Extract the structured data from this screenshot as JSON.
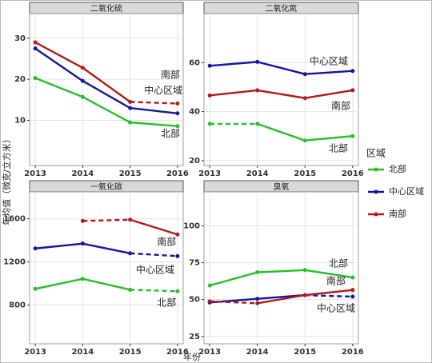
{
  "ylabel": "年均值（微克/立方米）",
  "xlabel": "年份",
  "legend_title": "区域",
  "chart_data": [
    {
      "type": "line",
      "title": "二氧化硫",
      "x": [
        2013,
        2014,
        2015,
        2016
      ],
      "xlim": [
        2012.88,
        2016.12
      ],
      "xticks": [
        2013,
        2014,
        2015,
        2016
      ],
      "ylim": [
        -1,
        36
      ],
      "yticks": [
        10,
        20,
        30
      ],
      "grid": true,
      "series": [
        {
          "name": "北部",
          "color": "#22c322",
          "values": [
            20.3,
            15.7,
            9.5,
            8.6
          ],
          "dashed": []
        },
        {
          "name": "中心区域",
          "color": "#1515a8",
          "values": [
            27.5,
            19.6,
            13,
            11.7
          ],
          "dashed": []
        },
        {
          "name": "南部",
          "color": "#b81818",
          "values": [
            29,
            22.8,
            14.5,
            14.1
          ],
          "dashed": [
            2
          ]
        }
      ],
      "annotations": [
        {
          "text": "南部",
          "x": 2015.85,
          "y": 21
        },
        {
          "text": "中心区域",
          "x": 2015.7,
          "y": 17.2
        },
        {
          "text": "北部",
          "x": 2015.85,
          "y": 6.7
        }
      ]
    },
    {
      "type": "line",
      "title": "二氧化氮",
      "x": [
        2013,
        2014,
        2015,
        2016
      ],
      "xlim": [
        2012.88,
        2016.12
      ],
      "xticks": [
        2013,
        2014,
        2015,
        2016
      ],
      "ylim": [
        18,
        80
      ],
      "yticks": [
        20,
        40,
        60
      ],
      "grid": true,
      "series": [
        {
          "name": "北部",
          "color": "#22c322",
          "values": [
            35,
            35,
            28.2,
            30
          ],
          "dashed": [
            0
          ]
        },
        {
          "name": "中心区域",
          "color": "#1515a8",
          "values": [
            58.7,
            60.3,
            55.3,
            56.6
          ],
          "dashed": []
        },
        {
          "name": "南部",
          "color": "#b81818",
          "values": [
            46.6,
            48.7,
            45.5,
            48.7
          ],
          "dashed": []
        }
      ],
      "annotations": [
        {
          "text": "中心区域",
          "x": 2015.5,
          "y": 60.4
        },
        {
          "text": "南部",
          "x": 2015.75,
          "y": 42.1
        },
        {
          "text": "北部",
          "x": 2015.7,
          "y": 24.9
        }
      ]
    },
    {
      "type": "line",
      "title": "一氧化碳",
      "x": [
        2013,
        2014,
        2015,
        2016
      ],
      "xlim": [
        2012.88,
        2016.12
      ],
      "xticks": [
        2013,
        2014,
        2015,
        2016
      ],
      "ylim": [
        440,
        1850
      ],
      "yticks": [
        800,
        1200,
        1600
      ],
      "grid": true,
      "series": [
        {
          "name": "北部",
          "color": "#22c322",
          "values": [
            950,
            1043,
            942,
            928
          ],
          "dashed": [
            2
          ]
        },
        {
          "name": "中心区域",
          "color": "#1515a8",
          "values": [
            1325,
            1370,
            1280,
            1254
          ],
          "dashed": [
            2
          ]
        },
        {
          "name": "南部",
          "color": "#b81818",
          "values": [
            null,
            1580,
            1592,
            1455
          ],
          "dashed": [
            1
          ]
        }
      ],
      "annotations": [
        {
          "text": "南部",
          "x": 2015.77,
          "y": 1383
        },
        {
          "text": "中心区域",
          "x": 2015.53,
          "y": 1123
        },
        {
          "text": "北部",
          "x": 2015.77,
          "y": 818
        }
      ]
    },
    {
      "type": "line",
      "title": "臭氧",
      "x": [
        2013,
        2014,
        2015,
        2016
      ],
      "xlim": [
        2012.88,
        2016.12
      ],
      "xticks": [
        2013,
        2014,
        2015,
        2016
      ],
      "ylim": [
        20,
        123
      ],
      "yticks": [
        25,
        50,
        75,
        100
      ],
      "grid": true,
      "series": [
        {
          "name": "北部",
          "color": "#22c322",
          "values": [
            59.5,
            68.5,
            70,
            65
          ],
          "dashed": []
        },
        {
          "name": "中心区域",
          "color": "#1515a8",
          "values": [
            48,
            50.5,
            53,
            52
          ],
          "dashed": [
            2
          ]
        },
        {
          "name": "南部",
          "color": "#b81818",
          "values": [
            48.8,
            47.5,
            53,
            56.5
          ],
          "dashed": [
            0
          ]
        }
      ],
      "annotations": [
        {
          "text": "北部",
          "x": 2015.7,
          "y": 74.2
        },
        {
          "text": "南部",
          "x": 2015.65,
          "y": 62.3
        },
        {
          "text": "中心区域",
          "x": 2015.65,
          "y": 43.9
        }
      ]
    }
  ]
}
